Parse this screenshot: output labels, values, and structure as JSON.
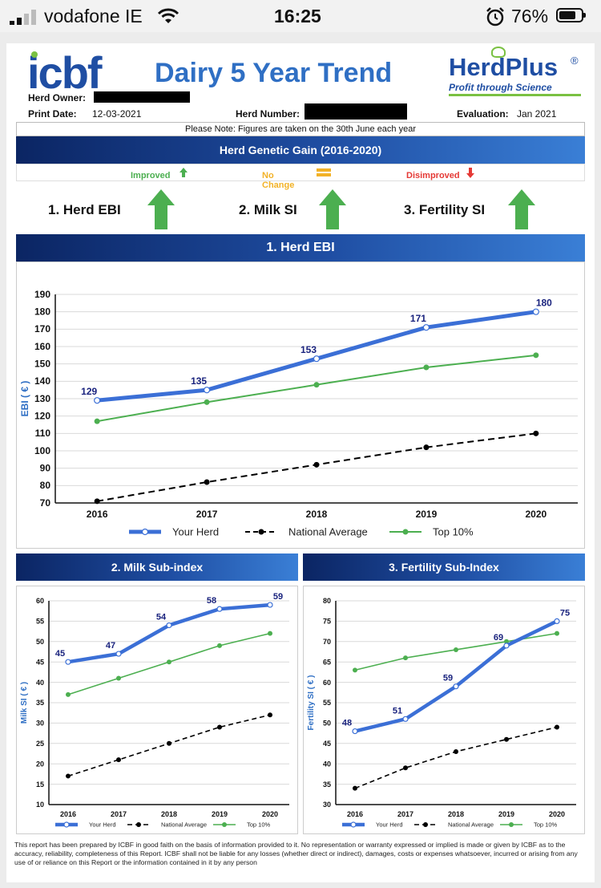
{
  "status_bar": {
    "carrier": "vodafone IE",
    "time": "16:25",
    "battery": "76%",
    "battery_level": 0.76
  },
  "header": {
    "icbf_logo": "icbf",
    "title": "Dairy 5 Year Trend",
    "herdplus_logo": "HerdPlus",
    "herdplus_reg": "®",
    "herdplus_tagline": "Profit through Science",
    "herd_owner_label": "Herd Owner:",
    "print_date_label": "Print Date:",
    "print_date": "12-03-2021",
    "herd_number_label": "Herd Number:",
    "evaluation_label": "Evaluation:",
    "evaluation": "Jan 2021"
  },
  "note": "Please Note: Figures are taken on the 30th June each year",
  "gain_section": {
    "title": "Herd Genetic Gain (2016-2020)",
    "improved": "Improved",
    "no_change": "No Change",
    "disimproved": "Disimproved",
    "items": [
      {
        "label": "1. Herd EBI",
        "status": "improved"
      },
      {
        "label": "2. Milk SI",
        "status": "improved"
      },
      {
        "label": "3. Fertility SI",
        "status": "improved"
      }
    ]
  },
  "colors": {
    "your_herd": "#3b6fd6",
    "national": "#000000",
    "top10": "#4caf50",
    "improved": "#4caf50",
    "no_change": "#f2b227",
    "disimproved": "#e53935"
  },
  "sections": {
    "ebi": "1. Herd EBI",
    "milk": "2. Milk Sub-index",
    "fertility": "3. Fertility Sub-Index"
  },
  "chart_data": [
    {
      "type": "line",
      "ylabel": "EBI ( € )",
      "categories": [
        "2016",
        "2017",
        "2018",
        "2019",
        "2020"
      ],
      "ylim": [
        70,
        190
      ],
      "yticks": [
        70,
        80,
        90,
        100,
        110,
        120,
        130,
        140,
        150,
        160,
        170,
        180,
        190
      ],
      "grid": true,
      "legend": "bottom",
      "series": [
        {
          "name": "Your Herd",
          "values": [
            129,
            135,
            153,
            171,
            180
          ],
          "labels": [
            "129",
            "135",
            "153",
            "171",
            "180"
          ]
        },
        {
          "name": "National Average",
          "values": [
            71,
            82,
            92,
            102,
            110
          ]
        },
        {
          "name": "Top 10%",
          "values": [
            117,
            128,
            138,
            148,
            155
          ]
        }
      ]
    },
    {
      "type": "line",
      "ylabel": "Milk SI ( € )",
      "categories": [
        "2016",
        "2017",
        "2018",
        "2019",
        "2020"
      ],
      "ylim": [
        10,
        60
      ],
      "yticks": [
        10,
        15,
        20,
        25,
        30,
        35,
        40,
        45,
        50,
        55,
        60
      ],
      "grid": true,
      "legend": "bottom",
      "series": [
        {
          "name": "Your Herd",
          "values": [
            45,
            47,
            54,
            58,
            59
          ],
          "labels": [
            "45",
            "47",
            "54",
            "58",
            "59"
          ]
        },
        {
          "name": "National Average",
          "values": [
            17,
            21,
            25,
            29,
            32
          ]
        },
        {
          "name": "Top 10%",
          "values": [
            37,
            41,
            45,
            49,
            52
          ]
        }
      ]
    },
    {
      "type": "line",
      "ylabel": "Fertility SI ( € )",
      "categories": [
        "2016",
        "2017",
        "2018",
        "2019",
        "2020"
      ],
      "ylim": [
        30,
        80
      ],
      "yticks": [
        30,
        35,
        40,
        45,
        50,
        55,
        60,
        65,
        70,
        75,
        80
      ],
      "grid": true,
      "legend": "bottom",
      "series": [
        {
          "name": "Your Herd",
          "values": [
            48,
            51,
            59,
            69,
            75
          ],
          "labels": [
            "48",
            "51",
            "59",
            "69",
            "75"
          ]
        },
        {
          "name": "National Average",
          "values": [
            34,
            39,
            43,
            46,
            49
          ]
        },
        {
          "name": "Top 10%",
          "values": [
            63,
            66,
            68,
            70,
            72
          ]
        }
      ]
    }
  ],
  "disclaimer": "This report has been prepared by ICBF in good faith on the basis of information provided to it. No representation or warranty expressed or implied is made or given by ICBF as to the accuracy, reliability, completeness of this Report. ICBF shall not be liable for any losses (whether direct or indirect), damages, costs or expenses whatsoever, incurred or arising from any use of or reliance on this Report or the information contained in it by any person"
}
